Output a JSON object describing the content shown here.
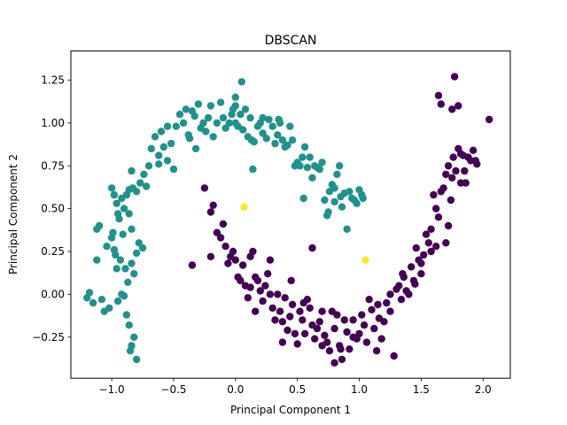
{
  "chart_data": {
    "type": "scatter",
    "title": "DBSCAN",
    "xlabel": "Principal Component 1",
    "ylabel": "Principal Component 2",
    "xlim": [
      -1.33,
      2.22
    ],
    "ylim": [
      -0.49,
      1.42
    ],
    "xticks": [
      -1.0,
      -0.5,
      0.0,
      0.5,
      1.0,
      1.5,
      2.0
    ],
    "xtick_labels": [
      "−1.0",
      "−0.5",
      "0.0",
      "0.5",
      "1.0",
      "1.5",
      "2.0"
    ],
    "yticks": [
      -0.25,
      0.0,
      0.25,
      0.5,
      0.75,
      1.0,
      1.25
    ],
    "ytick_labels": [
      "−0.25",
      "0.00",
      "0.25",
      "0.50",
      "0.75",
      "1.00",
      "1.25"
    ],
    "grid": false,
    "series": [
      {
        "color": "#21918c",
        "points": [
          [
            -1.2,
            -0.02
          ],
          [
            -1.18,
            0.01
          ],
          [
            -1.15,
            -0.05
          ],
          [
            -1.12,
            0.2
          ],
          [
            -1.1,
            0.4
          ],
          [
            -1.12,
            0.38
          ],
          [
            -1.08,
            -0.03
          ],
          [
            -1.06,
            -0.1
          ],
          [
            -1.04,
            0.28
          ],
          [
            -1.02,
            -0.08
          ],
          [
            -1.0,
            0.33
          ],
          [
            -0.99,
            0.36
          ],
          [
            -0.98,
            0.26
          ],
          [
            -0.97,
            0.23
          ],
          [
            -0.96,
            0.15
          ],
          [
            -0.95,
            -0.04
          ],
          [
            -0.93,
            0.2
          ],
          [
            -0.91,
            0.35
          ],
          [
            -0.89,
            0.15
          ],
          [
            -0.88,
            -0.12
          ],
          [
            -0.86,
            -0.18
          ],
          [
            -0.84,
            -0.3
          ],
          [
            -0.82,
            -0.25
          ],
          [
            -0.8,
            -0.38
          ],
          [
            -0.85,
            -0.33
          ],
          [
            -0.87,
            0.07
          ],
          [
            -0.9,
            -0.01
          ],
          [
            -0.92,
            0.0
          ],
          [
            -0.94,
            0.44
          ],
          [
            -0.95,
            0.47
          ],
          [
            -0.9,
            0.5
          ],
          [
            -0.86,
            0.47
          ],
          [
            -0.84,
            0.18
          ],
          [
            -0.82,
            0.12
          ],
          [
            -0.8,
            0.24
          ],
          [
            -0.84,
            0.38
          ],
          [
            -0.78,
            0.3
          ],
          [
            -0.75,
            0.27
          ],
          [
            -0.98,
            0.58
          ],
          [
            -1.0,
            0.62
          ],
          [
            -0.96,
            0.53
          ],
          [
            -0.92,
            0.56
          ],
          [
            -0.88,
            0.58
          ],
          [
            -0.84,
            0.72
          ],
          [
            -0.83,
            0.62
          ],
          [
            -0.86,
            0.61
          ],
          [
            -0.8,
            0.6
          ],
          [
            -0.77,
            0.65
          ],
          [
            -0.74,
            0.7
          ],
          [
            -0.72,
            0.63
          ],
          [
            -0.7,
            0.75
          ],
          [
            -0.68,
            0.85
          ],
          [
            -0.65,
            0.92
          ],
          [
            -0.62,
            0.81
          ],
          [
            -0.6,
            0.95
          ],
          [
            -0.58,
            0.86
          ],
          [
            -0.55,
            0.78
          ],
          [
            -0.52,
            0.88
          ],
          [
            -0.5,
            0.73
          ],
          [
            -0.48,
            0.98
          ],
          [
            -0.45,
            1.05
          ],
          [
            -0.42,
            1.0
          ],
          [
            -0.4,
            1.08
          ],
          [
            -0.38,
            0.93
          ],
          [
            -0.35,
            1.07
          ],
          [
            -0.33,
            1.04
          ],
          [
            -0.3,
            1.11
          ],
          [
            -0.28,
            0.97
          ],
          [
            -0.26,
            1.0
          ],
          [
            -0.24,
            0.95
          ],
          [
            -0.22,
            1.03
          ],
          [
            -0.2,
            1.1
          ],
          [
            -0.18,
            0.92
          ],
          [
            -0.15,
            1.0
          ],
          [
            -0.12,
            1.12
          ],
          [
            -0.1,
            1.03
          ],
          [
            -0.08,
            0.97
          ],
          [
            -0.05,
            1.0
          ],
          [
            -0.03,
            1.05
          ],
          [
            0.0,
            1.15
          ],
          [
            0.0,
            1.0
          ],
          [
            0.02,
            0.98
          ],
          [
            0.04,
            1.05
          ],
          [
            0.05,
            1.24
          ],
          [
            0.06,
            0.96
          ],
          [
            0.08,
            1.08
          ],
          [
            0.1,
            0.92
          ],
          [
            0.12,
            1.03
          ],
          [
            0.14,
            0.73
          ],
          [
            0.15,
            0.89
          ],
          [
            0.18,
            0.98
          ],
          [
            0.2,
            1.0
          ],
          [
            0.22,
            0.94
          ],
          [
            0.25,
            0.91
          ],
          [
            0.27,
            1.02
          ],
          [
            0.3,
            0.98
          ],
          [
            0.32,
            0.88
          ],
          [
            0.34,
            0.93
          ],
          [
            0.36,
            1.0
          ],
          [
            0.38,
            0.9
          ],
          [
            0.4,
            0.86
          ],
          [
            0.42,
            0.87
          ],
          [
            0.44,
            0.98
          ],
          [
            0.46,
            0.9
          ],
          [
            0.48,
            0.75
          ],
          [
            0.5,
            0.77
          ],
          [
            0.52,
            0.75
          ],
          [
            0.54,
            0.8
          ],
          [
            0.55,
            0.56
          ],
          [
            0.56,
            0.86
          ],
          [
            0.58,
            0.74
          ],
          [
            0.6,
            0.8
          ],
          [
            0.62,
            0.68
          ],
          [
            0.64,
            0.75
          ],
          [
            0.66,
            0.74
          ],
          [
            0.68,
            0.73
          ],
          [
            0.7,
            0.77
          ],
          [
            0.72,
            0.55
          ],
          [
            0.74,
            0.46
          ],
          [
            0.75,
            0.48
          ],
          [
            0.76,
            0.6
          ],
          [
            0.78,
            0.64
          ],
          [
            0.8,
            0.54
          ],
          [
            0.8,
            0.62
          ],
          [
            0.82,
            0.7
          ],
          [
            0.84,
            0.75
          ],
          [
            0.85,
            0.57
          ],
          [
            0.86,
            0.51
          ],
          [
            0.88,
            0.59
          ],
          [
            0.9,
            0.38
          ],
          [
            0.92,
            0.6
          ],
          [
            0.94,
            0.56
          ],
          [
            0.96,
            0.55
          ],
          [
            0.98,
            0.53
          ],
          [
            1.0,
            0.61
          ],
          [
            1.02,
            0.58
          ],
          [
            1.03,
            0.56
          ],
          [
            -0.32,
            0.85
          ],
          [
            -0.37,
            0.91
          ],
          [
            -0.55,
            0.98
          ],
          [
            -0.62,
            0.76
          ],
          [
            0.22,
            1.03
          ],
          [
            -0.02,
            1.08
          ],
          [
            0.0,
            1.1
          ],
          [
            0.35,
            1.02
          ],
          [
            0.13,
            0.9
          ]
        ]
      },
      {
        "color": "#440154",
        "points": [
          [
            -0.25,
            0.62
          ],
          [
            -0.2,
            0.48
          ],
          [
            -0.18,
            0.52
          ],
          [
            -0.15,
            0.36
          ],
          [
            -0.12,
            0.33
          ],
          [
            -0.1,
            0.41
          ],
          [
            -0.08,
            0.28
          ],
          [
            -0.06,
            0.18
          ],
          [
            -0.04,
            0.22
          ],
          [
            -0.02,
            0.25
          ],
          [
            0.0,
            0.2
          ],
          [
            0.02,
            0.1
          ],
          [
            0.04,
            0.08
          ],
          [
            0.06,
            0.17
          ],
          [
            0.08,
            0.05
          ],
          [
            0.1,
            -0.02
          ],
          [
            0.12,
            0.04
          ],
          [
            0.14,
            0.25
          ],
          [
            0.16,
            0.1
          ],
          [
            0.18,
            0.08
          ],
          [
            0.2,
            0.02
          ],
          [
            0.22,
            -0.04
          ],
          [
            0.24,
            0.05
          ],
          [
            0.26,
            0.12
          ],
          [
            0.28,
            0.0
          ],
          [
            0.3,
            -0.08
          ],
          [
            0.32,
            -0.15
          ],
          [
            0.34,
            0.0
          ],
          [
            0.36,
            -0.1
          ],
          [
            0.38,
            -0.16
          ],
          [
            0.4,
            -0.02
          ],
          [
            0.42,
            -0.21
          ],
          [
            0.44,
            -0.13
          ],
          [
            0.46,
            -0.06
          ],
          [
            0.48,
            -0.23
          ],
          [
            0.5,
            -0.29
          ],
          [
            0.52,
            -0.1
          ],
          [
            0.54,
            -0.15
          ],
          [
            0.56,
            -0.23
          ],
          [
            0.58,
            -0.03
          ],
          [
            0.6,
            -0.08
          ],
          [
            0.62,
            -0.18
          ],
          [
            0.64,
            -0.26
          ],
          [
            0.66,
            -0.2
          ],
          [
            0.68,
            -0.16
          ],
          [
            0.7,
            -0.1
          ],
          [
            0.72,
            -0.24
          ],
          [
            0.74,
            -0.28
          ],
          [
            0.76,
            -0.33
          ],
          [
            0.78,
            -0.1
          ],
          [
            0.8,
            -0.2
          ],
          [
            0.82,
            -0.12
          ],
          [
            0.84,
            -0.3
          ],
          [
            0.86,
            -0.38
          ],
          [
            0.88,
            -0.15
          ],
          [
            0.9,
            -0.22
          ],
          [
            0.92,
            -0.32
          ],
          [
            0.95,
            -0.25
          ],
          [
            0.98,
            -0.26
          ],
          [
            1.0,
            -0.23
          ],
          [
            1.02,
            -0.12
          ],
          [
            1.04,
            -0.18
          ],
          [
            1.06,
            -0.28
          ],
          [
            1.08,
            -0.03
          ],
          [
            1.1,
            -0.09
          ],
          [
            1.12,
            -0.2
          ],
          [
            1.14,
            -0.33
          ],
          [
            1.16,
            -0.14
          ],
          [
            1.18,
            -0.26
          ],
          [
            1.2,
            -0.16
          ],
          [
            1.22,
            -0.05
          ],
          [
            1.25,
            0.0
          ],
          [
            1.28,
            -0.36
          ],
          [
            1.3,
            0.03
          ],
          [
            1.32,
            0.05
          ],
          [
            1.34,
            -0.03
          ],
          [
            1.36,
            0.1
          ],
          [
            1.38,
            0.02
          ],
          [
            1.4,
            0.0
          ],
          [
            1.42,
            0.16
          ],
          [
            1.44,
            0.08
          ],
          [
            1.46,
            0.27
          ],
          [
            1.48,
            0.2
          ],
          [
            1.5,
            0.12
          ],
          [
            1.52,
            0.23
          ],
          [
            1.54,
            0.35
          ],
          [
            1.56,
            0.3
          ],
          [
            1.58,
            0.38
          ],
          [
            1.6,
            0.58
          ],
          [
            1.62,
            0.5
          ],
          [
            1.62,
            0.28
          ],
          [
            1.64,
            0.45
          ],
          [
            1.66,
            0.6
          ],
          [
            1.68,
            0.62
          ],
          [
            1.7,
            0.3
          ],
          [
            1.7,
            0.7
          ],
          [
            1.72,
            0.75
          ],
          [
            1.72,
            0.4
          ],
          [
            1.74,
            0.55
          ],
          [
            1.75,
            0.68
          ],
          [
            1.76,
            0.8
          ],
          [
            1.77,
            1.27
          ],
          [
            1.78,
            0.72
          ],
          [
            1.8,
            0.85
          ],
          [
            1.8,
            1.1
          ],
          [
            1.82,
            0.65
          ],
          [
            1.82,
            0.82
          ],
          [
            1.84,
            0.81
          ],
          [
            1.85,
            0.72
          ],
          [
            1.86,
            0.65
          ],
          [
            1.88,
            0.8
          ],
          [
            1.9,
            0.78
          ],
          [
            1.92,
            0.84
          ],
          [
            1.94,
            0.78
          ],
          [
            1.95,
            0.76
          ],
          [
            2.05,
            1.02
          ],
          [
            1.64,
            1.16
          ],
          [
            1.66,
            1.11
          ],
          [
            1.75,
            1.08
          ],
          [
            1.58,
            0.25
          ],
          [
            1.5,
            0.18
          ],
          [
            1.45,
            0.06
          ],
          [
            0.12,
            0.22
          ],
          [
            -0.35,
            0.17
          ],
          [
            -0.2,
            0.22
          ],
          [
            0.62,
            0.27
          ],
          [
            0.55,
            -0.05
          ],
          [
            0.28,
            0.2
          ],
          [
            0.16,
            -0.1
          ],
          [
            0.45,
            0.08
          ],
          [
            0.7,
            -0.3
          ],
          [
            0.85,
            -0.32
          ],
          [
            0.95,
            -0.15
          ],
          [
            1.15,
            -0.06
          ],
          [
            1.25,
            -0.1
          ],
          [
            1.35,
            0.12
          ],
          [
            0.38,
            -0.28
          ],
          [
            0.8,
            -0.4
          ]
        ]
      },
      {
        "color": "#fde725",
        "points": [
          [
            0.07,
            0.51
          ],
          [
            1.05,
            0.2
          ]
        ]
      }
    ]
  }
}
